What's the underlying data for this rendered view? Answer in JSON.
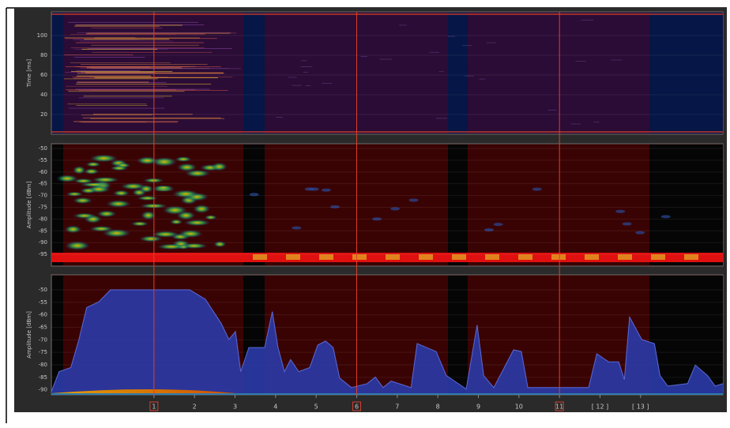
{
  "panels": [
    {
      "y_label": "Time [ms]",
      "ylim": [
        0,
        124
      ],
      "yticks": [
        20,
        40,
        60,
        80,
        100
      ]
    },
    {
      "y_label": "Amplitude [dBm]",
      "ylim": [
        -100,
        -48
      ],
      "yticks": [
        -95,
        -90,
        -85,
        -80,
        -75,
        -70,
        -65,
        -60,
        -55,
        -50
      ]
    },
    {
      "y_label": "Amplitude [dBm]",
      "ylim": [
        -92,
        -44
      ],
      "yticks": [
        -90,
        -85,
        -80,
        -75,
        -70,
        -65,
        -60,
        -55,
        -50
      ],
      "trace": {
        "color": "#2b3aa8",
        "x": [
          -1.53,
          -1.34,
          -1.05,
          -0.85,
          -0.66,
          -0.36,
          -0.07,
          1.88,
          2.27,
          2.66,
          2.85,
          3.01,
          3.14,
          3.34,
          3.73,
          3.92,
          4.06,
          4.22,
          4.37,
          4.57,
          4.84,
          5.04,
          5.23,
          5.42,
          5.58,
          5.87,
          6.26,
          6.46,
          6.65,
          6.85,
          7.34,
          7.49,
          7.96,
          8.21,
          8.7,
          8.97,
          9.13,
          9.38,
          9.87,
          10.06,
          10.22,
          11.72,
          11.92,
          12.21,
          12.46,
          12.6,
          12.73,
          13.03,
          13.34,
          13.48,
          13.67,
          14.16,
          14.35,
          14.65,
          14.84,
          15.03
        ],
        "values": [
          -90.7,
          -82.7,
          -81.1,
          -69.9,
          -57.1,
          -54.8,
          -50,
          -50,
          -53.8,
          -63.5,
          -69.9,
          -66.7,
          -82.7,
          -73.1,
          -73.1,
          -58.7,
          -73.1,
          -82.7,
          -77.9,
          -82.7,
          -81.1,
          -72.1,
          -70.5,
          -73.1,
          -85.3,
          -89.1,
          -87.5,
          -84.9,
          -89.1,
          -86.5,
          -89.1,
          -71.5,
          -74.7,
          -84.3,
          -89.7,
          -64.1,
          -84.3,
          -89.1,
          -74,
          -74.7,
          -89.1,
          -89.1,
          -75.6,
          -78.8,
          -78.8,
          -85.9,
          -60.9,
          -69.9,
          -71.5,
          -84.3,
          -88.5,
          -87.5,
          -80.1,
          -84.3,
          -88.5,
          -87.5
        ]
      }
    }
  ],
  "channels": {
    "xlim": [
      -1.53,
      15.03
    ],
    "ticks": [
      1,
      2,
      3,
      4,
      5,
      6,
      7,
      8,
      9,
      10,
      11,
      {
        "value": 12,
        "label": "[ 12 ]"
      },
      {
        "value": 13,
        "label": "[ 13 ]"
      }
    ],
    "highlighted": [
      1,
      6,
      11
    ]
  }
}
